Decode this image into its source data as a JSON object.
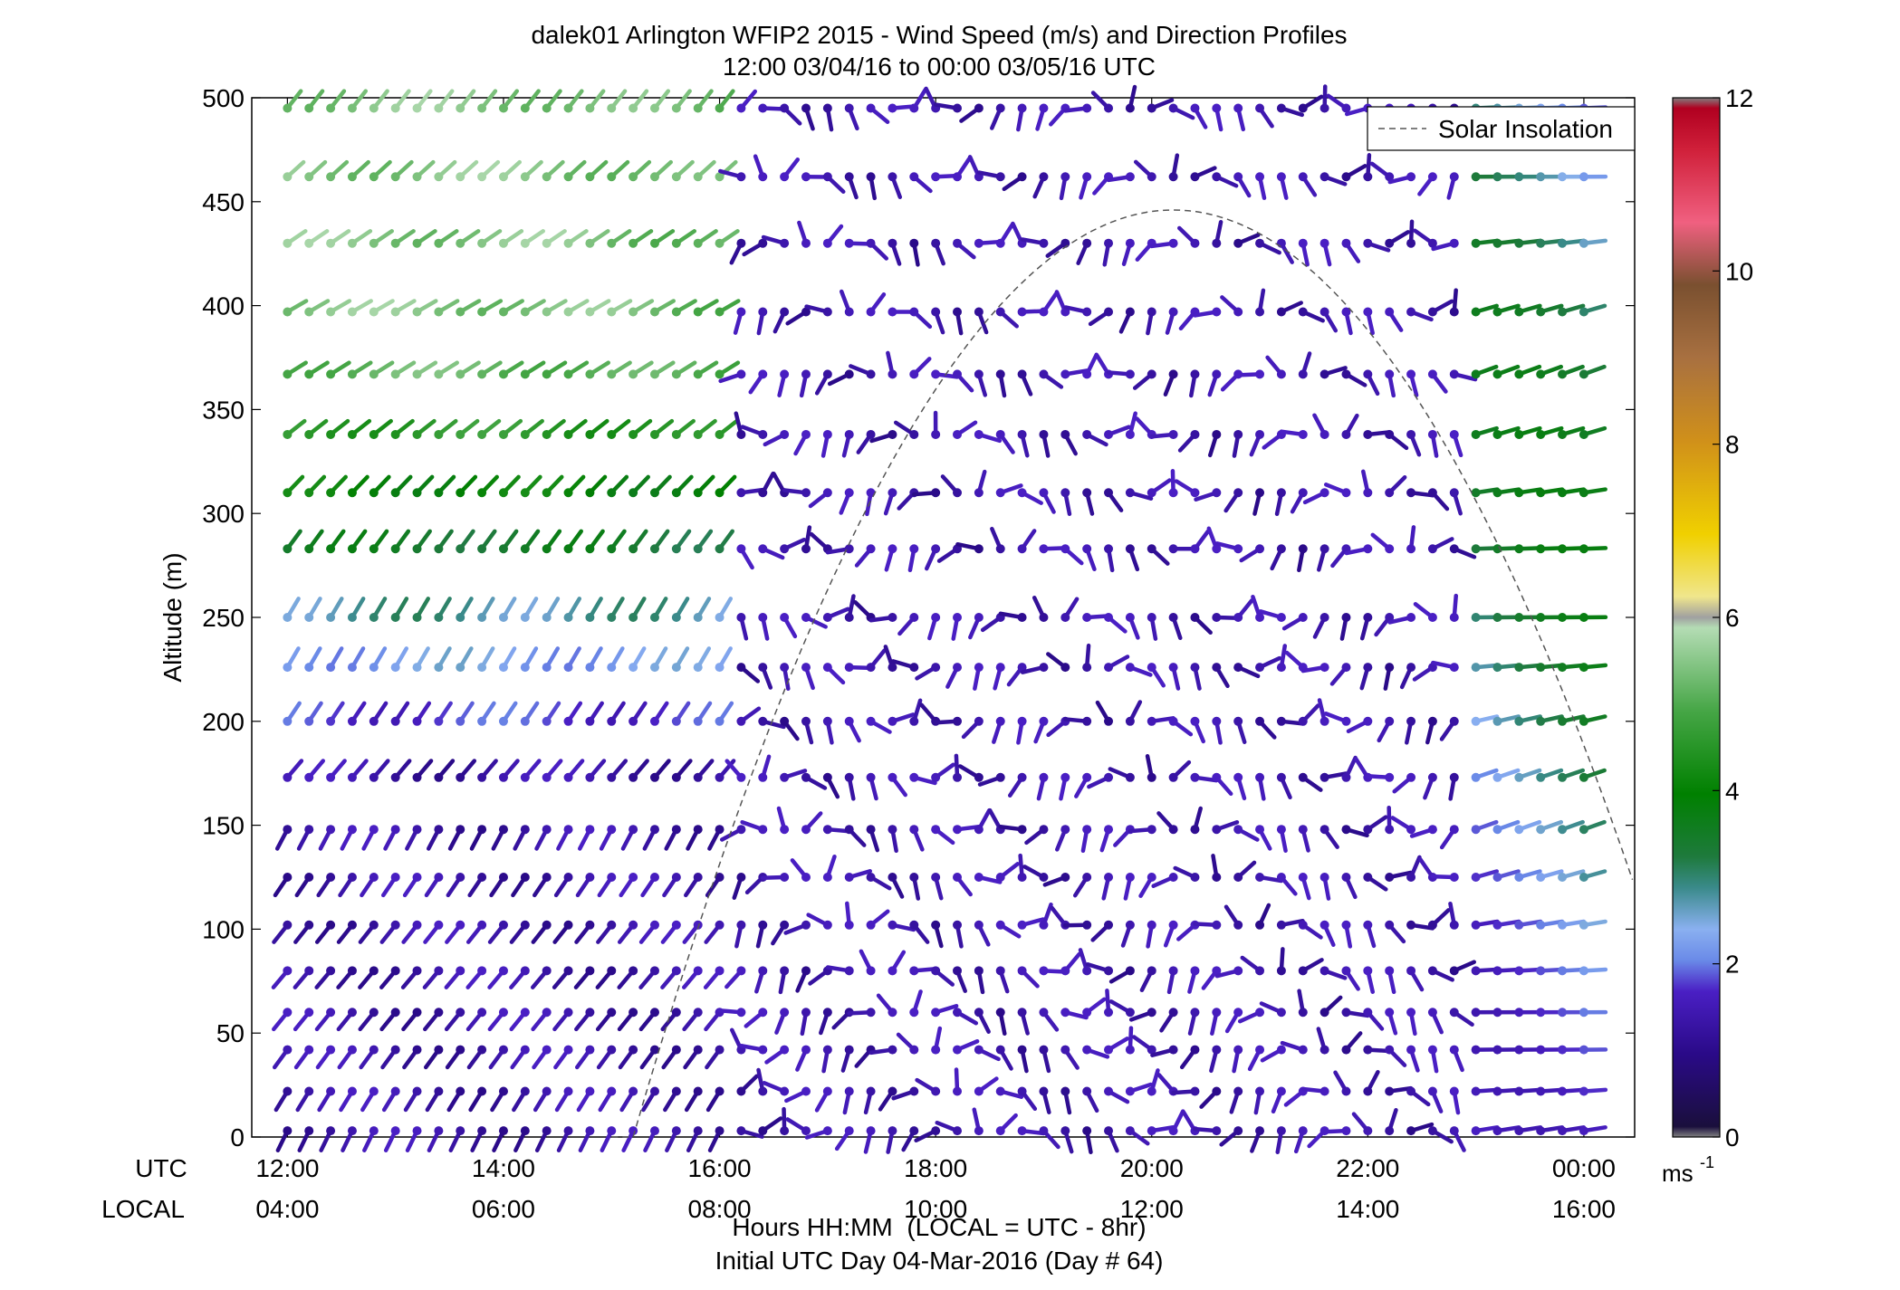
{
  "chart_data": {
    "type": "wind-barb-profile",
    "title_line1": "dalek01 Arlington WFIP2 2015 - Wind Speed (m/s) and Direction Profiles",
    "title_line2": "12:00 03/04/16 to 00:00 03/05/16  UTC",
    "ylabel": "Altitude (m)",
    "xlabel": "Hours HH:MM  (LOCAL = UTC - 8hr)",
    "footer": "Initial UTC Day 04-Mar-2016 (Day # 64)",
    "utc_row_label": "UTC",
    "local_row_label": "LOCAL",
    "x_ticks_utc": [
      "12:00",
      "14:00",
      "16:00",
      "18:00",
      "20:00",
      "22:00",
      "00:00"
    ],
    "x_ticks_local": [
      "04:00",
      "06:00",
      "08:00",
      "10:00",
      "12:00",
      "14:00",
      "16:00"
    ],
    "xlim_hours": [
      11.67,
      24.47
    ],
    "y_ticks": [
      "0",
      "50",
      "100",
      "150",
      "200",
      "250",
      "300",
      "350",
      "400",
      "450",
      "500"
    ],
    "ylim": [
      0,
      500
    ],
    "legend_label": "Solar Insolation",
    "legend_position": "top-right",
    "colorbar_ticks": [
      "0",
      "2",
      "4",
      "6",
      "8",
      "10",
      "12"
    ],
    "colorbar_units": "ms",
    "colorbar_units_exp": "-1",
    "colorbar_range": [
      0,
      12
    ],
    "solar_curve": {
      "start_hour": 15.0,
      "end_hour": 25.0,
      "peak_hour": 20.2,
      "peak_altitude": 446
    },
    "altitudes_m": [
      3,
      22,
      42,
      60,
      80,
      102,
      125,
      148,
      173,
      200,
      226,
      250,
      283,
      310,
      338,
      367,
      397,
      430,
      462,
      495
    ],
    "time_hours_start": 12.0,
    "time_hours_step": 0.2,
    "time_hours_count": 61,
    "profile_sample": [
      {
        "alt": 495,
        "speed": 4.5,
        "dir": 240
      },
      {
        "alt": 338,
        "speed": 5.8,
        "dir": 225
      },
      {
        "alt": 226,
        "speed": 3.5,
        "dir": 200
      },
      {
        "alt": 125,
        "speed": 1.8,
        "dir": 0
      },
      {
        "alt": 22,
        "speed": 3.0,
        "dir": 90
      }
    ]
  }
}
